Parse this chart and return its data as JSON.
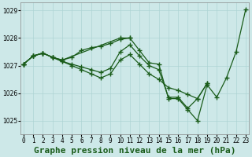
{
  "title": "Graphe pression niveau de la mer (hPa)",
  "xlabel_hours": [
    0,
    1,
    2,
    3,
    4,
    5,
    6,
    7,
    8,
    9,
    10,
    11,
    12,
    13,
    14,
    15,
    16,
    17,
    18,
    19,
    20,
    21,
    22,
    23
  ],
  "ylim": [
    1024.5,
    1029.3
  ],
  "yticks": [
    1025,
    1026,
    1027,
    1028,
    1029
  ],
  "background_color": "#cde8e8",
  "grid_color": "#aed4d4",
  "line_color": "#1a5c1a",
  "series": [
    {
      "x": [
        0,
        1,
        2,
        3,
        4,
        10,
        11,
        12,
        13,
        14,
        15,
        16,
        17,
        18,
        19,
        20,
        21,
        22,
        23
      ],
      "y": [
        1027.05,
        1027.35,
        1027.45,
        1027.3,
        1027.2,
        1028.0,
        1028.0,
        1027.55,
        1027.1,
        1027.05,
        1025.8,
        1025.8,
        1025.4,
        1025.0,
        1026.3,
        1025.85,
        1026.55,
        1027.5,
        1029.05
      ]
    },
    {
      "x": [
        0,
        1,
        2,
        3,
        4,
        5,
        6,
        7,
        8,
        9,
        10,
        11
      ],
      "y": [
        1027.05,
        1027.35,
        1027.45,
        1027.3,
        1027.2,
        1027.3,
        1027.55,
        1027.65,
        1027.7,
        1027.8,
        1027.95,
        1028.0
      ]
    },
    {
      "x": [
        0,
        1,
        2,
        3,
        4,
        5,
        6,
        7,
        8,
        9,
        10,
        11,
        12,
        13,
        14,
        15,
        16,
        17,
        18,
        19
      ],
      "y": [
        1027.05,
        1027.35,
        1027.45,
        1027.3,
        1027.15,
        1027.05,
        1026.95,
        1026.85,
        1026.75,
        1026.9,
        1027.5,
        1027.75,
        1027.35,
        1027.0,
        1026.85,
        1025.85,
        1025.85,
        1025.45,
        1025.8,
        1026.35
      ]
    },
    {
      "x": [
        0,
        1,
        2,
        3,
        4,
        5,
        6,
        7,
        8,
        9,
        10,
        11,
        12,
        13,
        14,
        15,
        16,
        17,
        18,
        19
      ],
      "y": [
        1027.05,
        1027.35,
        1027.45,
        1027.3,
        1027.15,
        1027.0,
        1026.85,
        1026.7,
        1026.55,
        1026.7,
        1027.2,
        1027.4,
        1027.05,
        1026.7,
        1026.5,
        1026.2,
        1026.1,
        1025.95,
        1025.8,
        1026.35
      ]
    }
  ],
  "title_fontsize": 8,
  "tick_fontsize": 5.5,
  "marker": "+",
  "marker_size": 4.5,
  "linewidth": 0.9
}
